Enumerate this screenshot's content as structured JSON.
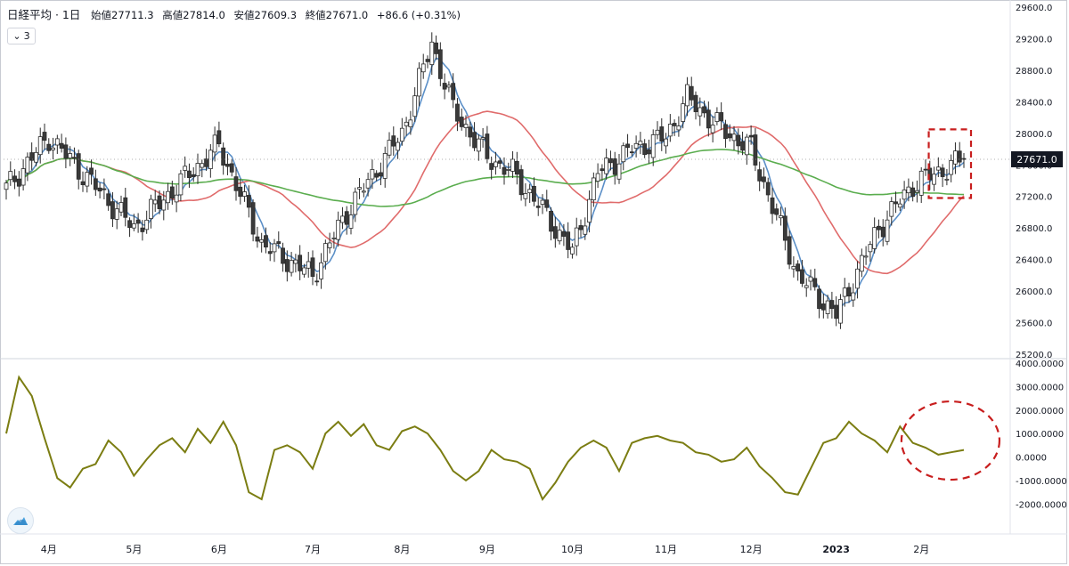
{
  "header": {
    "symbol": "日経平均 · 1日",
    "open": "始値27711.3",
    "high": "高値27814.0",
    "low": "安値27609.3",
    "close": "終値27671.0",
    "change": "+86.6 (+0.31%)",
    "indicator_toggle": "3"
  },
  "colors": {
    "up_candle": "#ffffff",
    "down_candle": "#3a3a3a",
    "ma_short": "#5b8fc7",
    "ma_mid": "#e06b6b",
    "ma_long": "#5aad4e",
    "oscillator": "#7b7d12",
    "highlight": "#c81e1e"
  },
  "chart_data": [
    {
      "type": "candlestick",
      "panel": "price",
      "y_axis": {
        "range": [
          25200,
          29600
        ],
        "ticks": [
          "25200.0",
          "25600.0",
          "26000.0",
          "26400.0",
          "26800.0",
          "27200.0",
          "27600.0",
          "28000.0",
          "28400.0",
          "28800.0",
          "29200.0",
          "29600.0"
        ]
      },
      "x_axis": {
        "labels": [
          "4月",
          "5月",
          "6月",
          "7月",
          "8月",
          "9月",
          "10月",
          "11月",
          "12月",
          "2023",
          "2月"
        ],
        "label_index": [
          10,
          30,
          50,
          72,
          93,
          113,
          133,
          155,
          175,
          195,
          215
        ]
      },
      "last_price": "27671.0",
      "x_anchor": [
        0,
        10,
        30,
        50,
        60,
        72,
        80,
        93,
        100,
        105,
        113,
        119,
        125,
        133,
        139,
        147,
        155,
        160,
        167,
        175,
        186,
        195,
        205,
        213,
        225
      ],
      "close_anchor": [
        27300,
        27950,
        26800,
        27850,
        26600,
        26200,
        27000,
        28000,
        29150,
        28300,
        27700,
        27500,
        27100,
        26500,
        27500,
        27800,
        27950,
        28450,
        28100,
        27800,
        26200,
        25700,
        26800,
        27350,
        27670
      ],
      "series": [
        {
          "name": "",
          "role": "ma_short",
          "smoothing_period": 5
        },
        {
          "name": "",
          "role": "ma_mid",
          "smoothing_period": 25
        },
        {
          "name": "",
          "role": "ma_long",
          "smoothing_period": 75
        }
      ],
      "annotation": "dashed box around latest candles"
    },
    {
      "type": "line",
      "panel": "oscillator",
      "y_axis": {
        "range": [
          -2900,
          4000
        ],
        "ticks": [
          "4000.0000",
          "3000.0000",
          "2000.0000",
          "1000.0000",
          "0.0000",
          "-1000.0000",
          "-2000.0000"
        ]
      },
      "series": [
        {
          "name": "",
          "x": [
            0,
            3,
            6,
            9,
            12,
            15,
            18,
            21,
            24,
            27,
            30,
            33,
            36,
            39,
            42,
            45,
            48,
            51,
            54,
            57,
            60,
            63,
            66,
            69,
            72,
            75,
            78,
            81,
            84,
            87,
            90,
            93,
            96,
            99,
            102,
            105,
            108,
            111,
            114,
            117,
            120,
            123,
            126,
            129,
            132,
            135,
            138,
            141,
            144,
            147,
            150,
            153,
            156,
            159,
            162,
            165,
            168,
            171,
            174,
            177,
            180,
            183,
            186,
            189,
            192,
            195,
            198,
            201,
            204,
            207,
            210,
            213,
            216,
            219,
            222,
            225
          ],
          "values": [
            1000,
            3400,
            2600,
            800,
            -900,
            -1300,
            -500,
            -300,
            700,
            200,
            -800,
            -100,
            500,
            800,
            200,
            1200,
            600,
            1500,
            500,
            -1500,
            -1800,
            300,
            500,
            200,
            -500,
            1000,
            1500,
            900,
            1400,
            500,
            300,
            1100,
            1300,
            1000,
            300,
            -600,
            -1000,
            -600,
            300,
            -100,
            -200,
            -500,
            -1800,
            -1100,
            -200,
            400,
            700,
            400,
            -600,
            600,
            800,
            900,
            700,
            600,
            200,
            100,
            -200,
            -100,
            400,
            -400,
            -900,
            -1500,
            -1600,
            -500,
            600,
            800,
            1500,
            1000,
            700,
            200,
            1300,
            600,
            400,
            100,
            200,
            300
          ]
        }
      ],
      "annotation": "dashed ellipse around latest values"
    }
  ]
}
